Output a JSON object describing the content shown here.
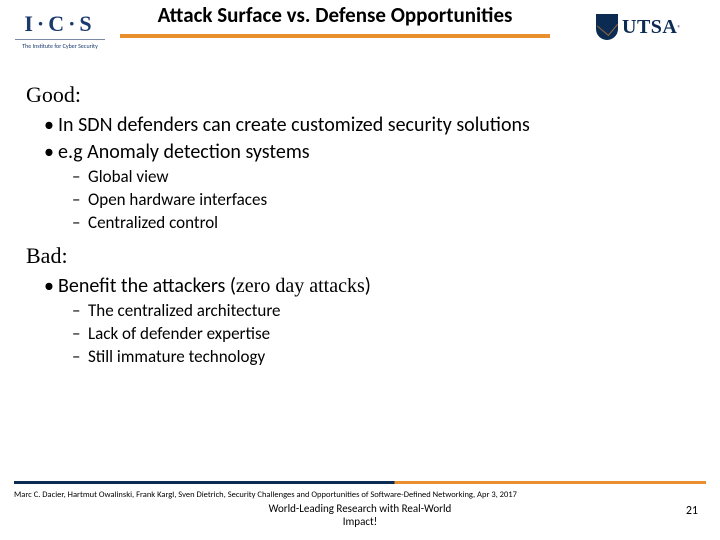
{
  "colors": {
    "accent_orange": "#e98f2e",
    "accent_navy": "#0b2b52",
    "ics_blue": "#1a3a6e",
    "text": "#000000",
    "background": "#ffffff"
  },
  "header": {
    "logo_left_main": "I·C·S",
    "logo_left_sub": "The Institute for Cyber Security",
    "title": "Attack Surface  vs. Defense Opportunities",
    "logo_right_text": "UTSA"
  },
  "content": {
    "good_heading": "Good:",
    "good_bullets": [
      "In SDN defenders can create customized security solutions",
      "e.g Anomaly detection systems"
    ],
    "good_subbullets": [
      "Global view",
      "Open hardware interfaces",
      "Centralized control"
    ],
    "bad_heading": "Bad:",
    "bad_bullet_pre": "Benefit the attackers (",
    "bad_bullet_em": "zero day attacks",
    "bad_bullet_post": ")",
    "bad_subbullets": [
      "The centralized architecture",
      "Lack of defender expertise",
      "Still immature technology"
    ]
  },
  "footer": {
    "citation": "Marc C. Dacier, Hartmut Owalinski, Frank Kargl, Sven Dietrich, Security Challenges and Opportunities of Software-Defined Networking, Apr 3, 2017",
    "tagline_l1": "World-Leading Research with Real-World",
    "tagline_l2": "Impact!",
    "page_number": "21"
  },
  "typography": {
    "title_fontsize": 21,
    "section_head_fontsize": 22,
    "bullet1_fontsize": 20,
    "bullet2_fontsize": 17,
    "citation_fontsize": 8.5,
    "tagline_fontsize": 11
  }
}
